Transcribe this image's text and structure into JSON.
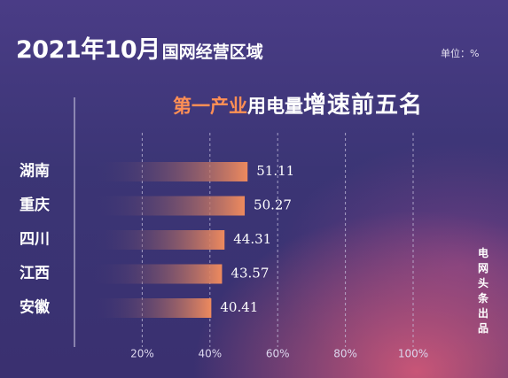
{
  "header": {
    "title_main": "2021年10月",
    "title_sub": "国网经营区域",
    "subtitle_highlight": "第一产业",
    "subtitle_middle": "用电量",
    "subtitle_end": "增速前五名",
    "unit": "单位：%",
    "watermark": "电网头条出品"
  },
  "chart_data": {
    "type": "bar",
    "orientation": "horizontal",
    "title": "2021年10月国网经营区域第一产业用电量增速前五名",
    "categories": [
      "湖南",
      "重庆",
      "四川",
      "江西",
      "安徽"
    ],
    "values": [
      51.11,
      50.27,
      44.31,
      43.57,
      40.41
    ],
    "value_labels": [
      "51.11",
      "50.27",
      "44.31",
      "43.57",
      "40.41"
    ],
    "xlim": [
      0,
      100
    ],
    "x_ticks": [
      20,
      40,
      60,
      80,
      100
    ],
    "x_tick_labels": [
      "20%",
      "40%",
      "60%",
      "80%",
      "100%"
    ],
    "grid": true,
    "bar_color_start": "#3b3575",
    "bar_color_end": "#ee8a5e",
    "unit": "%"
  }
}
